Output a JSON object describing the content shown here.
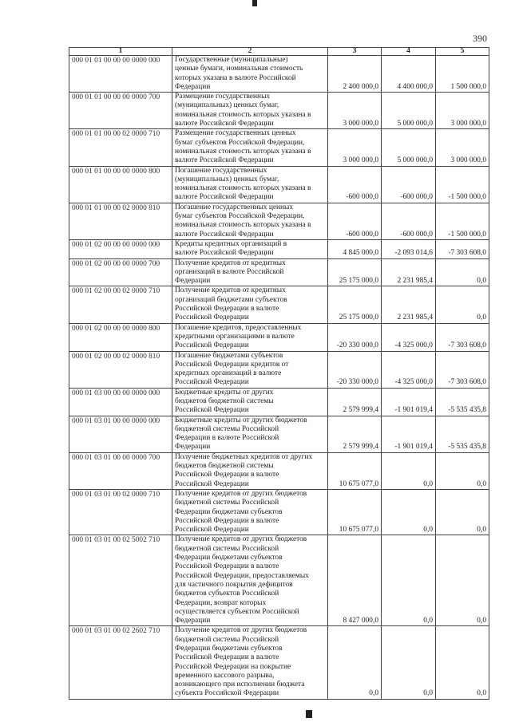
{
  "page_number": "390",
  "columns": [
    "1",
    "2",
    "3",
    "4",
    "5"
  ],
  "rows": [
    {
      "code": "000 01 01 00 00 00 0000 000",
      "desc": "Государственные (муниципальные)\nценные бумаги, номинальная стоимость\nкоторых указана в валюте Российской\nФедерации",
      "v3": "2 400 000,0",
      "v4": "4 400 000,0",
      "v5": "1 500 000,0"
    },
    {
      "code": "000 01 01 00 00 00 0000 700",
      "desc": "Размещение государственных\n(муниципальных) ценных бумаг,\nноминальная стоимость которых указана в\nвалюте Российской Федерации",
      "v3": "3 000 000,0",
      "v4": "5 000 000,0",
      "v5": "3 000 000,0"
    },
    {
      "code": "000 01 01 00 00 02 0000 710",
      "desc": "Размещение государственных ценных\nбумаг субъектов Российской Федерации,\nноминальная стоимость которых указана в\nвалюте Российской Федерации",
      "v3": "3 000 000,0",
      "v4": "5 000 000,0",
      "v5": "3 000 000,0"
    },
    {
      "code": "000 01 01 00 00 00 0000 800",
      "desc": "Погашение государственных\n(муниципальных) ценных бумаг,\nноминальная стоимость которых указана в\nвалюте Российской Федерации",
      "v3": "-600 000,0",
      "v4": "-600 000,0",
      "v5": "-1 500 000,0"
    },
    {
      "code": "000 01 01 00 00 02 0000 810",
      "desc": "Погашение государственных ценных\nбумаг субъектов Российской Федерации,\nноминальная стоимость которых указана в\nвалюте Российской Федерации",
      "v3": "-600 000,0",
      "v4": "-600 000,0",
      "v5": "-1 500 000,0"
    },
    {
      "code": "000 01 02 00 00 00 0000 000",
      "desc": "Кредиты кредитных организаций в\nвалюте Российской Федерации",
      "v3": "4 845 000,0",
      "v4": "-2 093 014,6",
      "v5": "-7 303 608,0"
    },
    {
      "code": "000 01 02 00 00 00 0000 700",
      "desc": "Получение кредитов от кредитных\nорганизаций в валюте Российской\nФедерации",
      "v3": "25 175 000,0",
      "v4": "2 231 985,4",
      "v5": "0,0"
    },
    {
      "code": "000 01 02 00 00 02 0000 710",
      "desc": "Получение кредитов от кредитных\nорганизаций бюджетами субъектов\nРоссийской Федерации в валюте\nРоссийской Федерации",
      "v3": "25 175 000,0",
      "v4": "2 231 985,4",
      "v5": "0,0"
    },
    {
      "code": "000 01 02 00 00 00 0000 800",
      "desc": "Погашение кредитов, предоставленных\nкредитными организациями в валюте\nРоссийской Федерации",
      "v3": "-20 330 000,0",
      "v4": "-4 325 000,0",
      "v5": "-7 303 608,0"
    },
    {
      "code": "000 01 02 00 00 02 0000 810",
      "desc": "Погашение бюджетами субъектов\nРоссийской Федерации кредитов от\nкредитных организаций в валюте\nРоссийской Федерации",
      "v3": "-20 330 000,0",
      "v4": "-4 325 000,0",
      "v5": "-7 303 608,0"
    },
    {
      "code": "000 01 03 00 00 00 0000 000",
      "desc": "Бюджетные кредиты от других\nбюджетов бюджетной системы\nРоссийской Федерации",
      "v3": "2 579 999,4",
      "v4": "-1 901 019,4",
      "v5": "-5 535 435,8"
    },
    {
      "code": "000 01 03 01 00 00 0000 000",
      "desc": "Бюджетные кредиты от других бюджетов\nбюджетной системы Российской\nФедерации в валюте Российской\nФедерации",
      "v3": "2 579 999,4",
      "v4": "-1 901 019,4",
      "v5": "-5 535 435,8"
    },
    {
      "code": "000 01 03 01 00 00 0000 700",
      "desc": "Получение бюджетных кредитов от других\nбюджетов бюджетной системы\nРоссийской Федерации в валюте\nРоссийской Федерации",
      "v3": "10 675 077,0",
      "v4": "0,0",
      "v5": "0,0"
    },
    {
      "code": "000 01 03 01 00 02 0000 710",
      "desc": "Получение кредитов от других бюджетов\nбюджетной системы Российской\nФедерации бюджетами субъектов\nРоссийской Федерации  в валюте\nРоссийской Федерации",
      "v3": "10 675 077,0",
      "v4": "0,0",
      "v5": "0,0"
    },
    {
      "code": "000 01 03 01 00 02 5002 710",
      "desc": "Получение кредитов от других бюджетов\nбюджетной системы Российской\nФедерации бюджетами субъектов\nРоссийской Федерации в валюте\nРоссийской Федерации, предоставляемых\nдля частичного покрытия дефицитов\nбюджетов субъектов Российской\nФедерации, возврат которых\nосуществляется субъектом Российской\nФедерации",
      "v3": "8 427 000,0",
      "v4": "0,0",
      "v5": "0,0"
    },
    {
      "code": "000 01 03 01 00 02 2602 710",
      "desc": "Получение кредитов от других бюджетов\nбюджетной системы Российской\nФедерации бюджетами субъектов\nРоссийской Федерации в валюте\nРоссийской Федерации на покрытие\nвременного кассового разрыва,\nвозникающего при исполнении бюджета\nсубъекта Российской Федерации\n ",
      "v3": "0,0",
      "v4": "0,0",
      "v5": "0,0"
    }
  ]
}
